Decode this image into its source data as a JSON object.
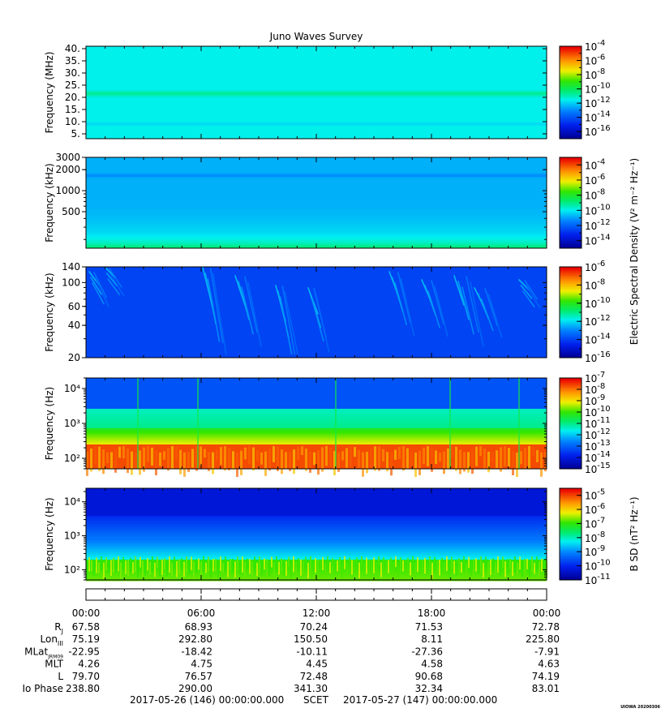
{
  "chart_data": [
    {
      "type": "heatmap",
      "title": "Juno Waves Survey",
      "ylabel": "Frequency (MHz)",
      "yscale": "linear",
      "ylim": [
        3,
        41
      ],
      "yticks": [
        "5.",
        "10.",
        "15.",
        "20.",
        "25.",
        "30.",
        "35.",
        "40."
      ],
      "ytick_values": [
        5,
        10,
        15,
        20,
        25,
        30,
        35,
        40
      ],
      "colorbar": {
        "scale": "log",
        "range": [
          -17,
          -4
        ],
        "ticks": [
          -4,
          -6,
          -8,
          -10,
          -12,
          -14,
          -16
        ],
        "label": ""
      },
      "features": {
        "background_level": -11.5,
        "band_center": 21.5,
        "band_level": -10.6
      }
    },
    {
      "type": "heatmap",
      "ylabel": "Frequency (kHz)",
      "yscale": "log",
      "ylim": [
        150,
        3000
      ],
      "yticks": [
        "3000",
        "2000",
        "1000",
        "500"
      ],
      "ytick_values": [
        3000,
        2000,
        1000,
        500
      ],
      "colorbar": {
        "scale": "log",
        "range": [
          -15,
          -3
        ],
        "ticks": [
          -4,
          -6,
          -8,
          -10,
          -12,
          -14
        ],
        "label": "Electric Spectral Density (V² m⁻² Hz⁻¹)"
      },
      "features": {
        "background_level": -10.3,
        "band_center": 1650,
        "band_level": -10.8
      }
    },
    {
      "type": "heatmap",
      "ylabel": "Frequency (kHz)",
      "yscale": "log",
      "ylim": [
        20,
        140
      ],
      "yticks": [
        "140",
        "100",
        "60",
        "40",
        "20"
      ],
      "ytick_values": [
        140,
        100,
        60,
        40,
        20
      ],
      "colorbar": {
        "scale": "log",
        "range": [
          -16,
          -6
        ],
        "ticks": [
          -6,
          -8,
          -10,
          -12,
          -14,
          -16
        ],
        "label": ""
      },
      "features": {
        "background_level": -14.0,
        "burst_level": -12.2
      }
    },
    {
      "type": "heatmap",
      "ylabel": "Frequency (Hz)",
      "yscale": "log",
      "ylim": [
        50,
        20000
      ],
      "yticks": [
        "10⁴",
        "10³",
        "10²"
      ],
      "ytick_values": [
        10000,
        1000,
        100
      ],
      "colorbar": {
        "scale": "log",
        "range": [
          -15,
          -7
        ],
        "ticks": [
          -7,
          -8,
          -9,
          -10,
          -11,
          -12,
          -13,
          -14,
          -15
        ],
        "label": ""
      },
      "features": {
        "high_level": -13.2,
        "mid_level": -11.0,
        "low_level": -7.6,
        "cutoff": 250
      }
    },
    {
      "type": "heatmap",
      "ylabel": "Frequency (Hz)",
      "yscale": "log",
      "ylim": [
        50,
        25000
      ],
      "yticks": [
        "10⁴",
        "10³",
        "10²"
      ],
      "ytick_values": [
        10000,
        1000,
        100
      ],
      "colorbar": {
        "scale": "log",
        "range": [
          -11,
          -4.5
        ],
        "ticks": [
          -5,
          -6,
          -7,
          -8,
          -9,
          -10,
          -11
        ],
        "label": "B SD (nT² Hz⁻¹)"
      },
      "features": {
        "high_level": -10.3,
        "low_level": -7.0
      }
    }
  ],
  "colorbar_base": "10",
  "ephemeris": {
    "times": [
      "00:00",
      "06:00",
      "12:00",
      "18:00",
      "00:00"
    ],
    "rows": [
      {
        "label": "R",
        "sub": "J",
        "values": [
          "67.58",
          "68.93",
          "70.24",
          "71.53",
          "72.78"
        ]
      },
      {
        "label": "Lon",
        "sub": "III",
        "values": [
          "75.19",
          "292.80",
          "150.50",
          "8.11",
          "225.80"
        ]
      },
      {
        "label": "MLat",
        "sub": "JRM09",
        "values": [
          "-22.95",
          "-18.42",
          "-10.11",
          "-27.36",
          "-7.91"
        ]
      },
      {
        "label": "MLT",
        "sub": "",
        "values": [
          "4.26",
          "4.75",
          "4.45",
          "4.58",
          "4.63"
        ]
      },
      {
        "label": "L",
        "sub": "",
        "values": [
          "79.70",
          "76.57",
          "72.48",
          "90.68",
          "74.19"
        ]
      },
      {
        "label": "Io Phase",
        "sub": "",
        "values": [
          "238.80",
          "290.00",
          "341.30",
          "32.34",
          "83.01"
        ]
      }
    ]
  },
  "footer": {
    "start": "2017-05-26 (146) 00:00:00.000",
    "mid": "SCET",
    "end": "2017-05-27 (147) 00:00:00.000",
    "corner": "UIOWA 20200306"
  }
}
